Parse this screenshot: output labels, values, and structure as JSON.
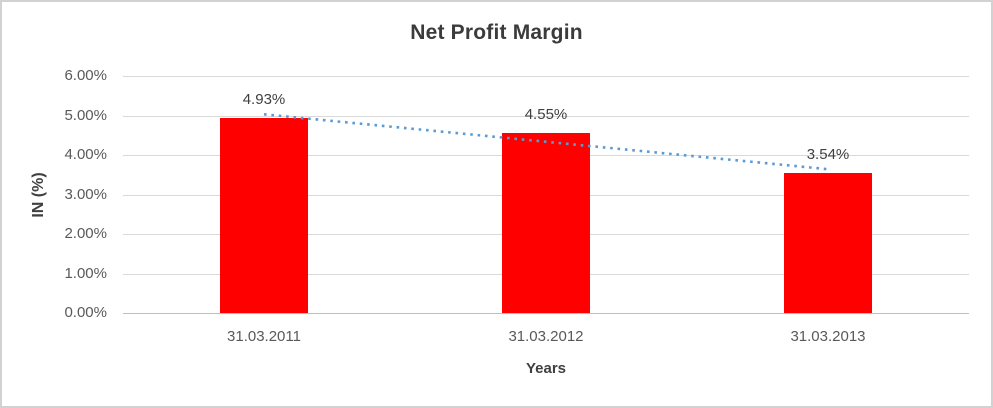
{
  "chart_data": {
    "type": "bar",
    "title": "Net Profit Margin",
    "xlabel": "Years",
    "ylabel": "IN (%)",
    "categories": [
      "31.03.2011",
      "31.03.2012",
      "31.03.2013"
    ],
    "series": [
      {
        "name": "Net Profit Margin",
        "color": "#FF0000",
        "values": [
          4.93,
          4.55,
          3.54
        ]
      }
    ],
    "data_labels": [
      "4.93%",
      "4.55%",
      "3.54%"
    ],
    "y_ticks": [
      "0.00%",
      "1.00%",
      "2.00%",
      "3.00%",
      "4.00%",
      "5.00%",
      "6.00%"
    ],
    "ylim": [
      0,
      6
    ],
    "y_step": 1,
    "grid": true,
    "legend": false,
    "trendline": {
      "type": "linear",
      "style": "dotted",
      "color": "#5B9BD5",
      "start_value": 5.03,
      "end_value": 3.64
    }
  }
}
